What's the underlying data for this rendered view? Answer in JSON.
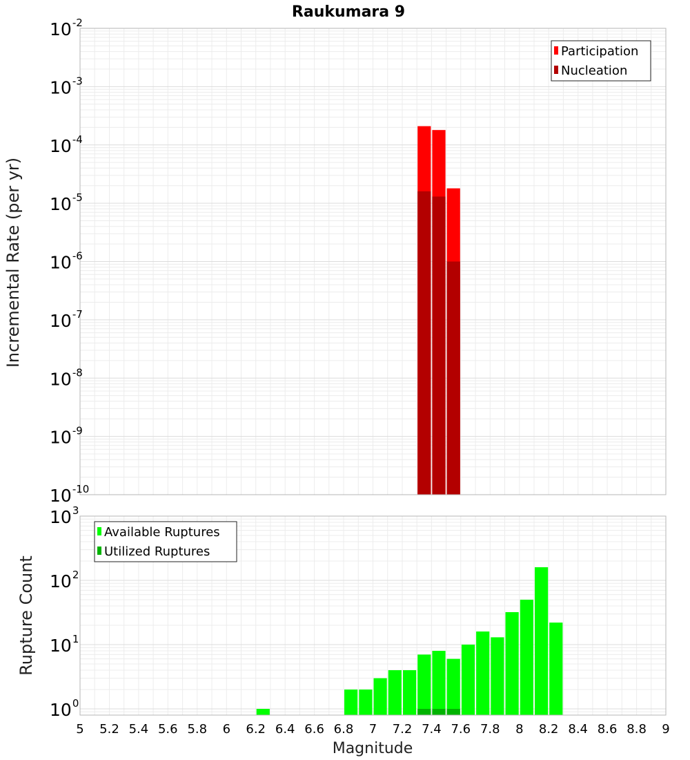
{
  "chart_data": [
    {
      "type": "bar",
      "title": "Raukumara 9",
      "xlabel": "",
      "ylabel": "Incremental Rate (per yr)",
      "yscale": "log",
      "ylim": [
        1e-10,
        0.01
      ],
      "xlim": [
        5,
        9
      ],
      "bin_width": 0.1,
      "grid": true,
      "legend_position": "top-right",
      "y_tick_decades": [
        {
          "base": "10",
          "exp": "-10"
        },
        {
          "base": "10",
          "exp": "-9"
        },
        {
          "base": "10",
          "exp": "-8"
        },
        {
          "base": "10",
          "exp": "-7"
        },
        {
          "base": "10",
          "exp": "-6"
        },
        {
          "base": "10",
          "exp": "-5"
        },
        {
          "base": "10",
          "exp": "-4"
        },
        {
          "base": "10",
          "exp": "-3"
        },
        {
          "base": "10",
          "exp": "-2"
        }
      ],
      "series": [
        {
          "name": "Participation",
          "color": "#ff0000",
          "x": [
            7.35,
            7.45,
            7.55
          ],
          "values": [
            0.00021,
            0.00018,
            1.8e-05
          ]
        },
        {
          "name": "Nucleation",
          "color": "#b30000",
          "x": [
            7.35,
            7.45,
            7.55
          ],
          "values": [
            1.6e-05,
            1.3e-05,
            1e-06
          ]
        }
      ]
    },
    {
      "type": "bar",
      "title": "",
      "xlabel": "Magnitude",
      "ylabel": "Rupture Count",
      "yscale": "log",
      "ylim": [
        0.8,
        1000
      ],
      "xlim": [
        5,
        9
      ],
      "bin_width": 0.1,
      "grid": true,
      "legend_position": "top-left",
      "x_ticks": [
        "5",
        "5.2",
        "5.4",
        "5.6",
        "5.8",
        "6",
        "6.2",
        "6.4",
        "6.6",
        "6.8",
        "7",
        "7.2",
        "7.4",
        "7.6",
        "7.8",
        "8",
        "8.2",
        "8.4",
        "8.6",
        "8.8",
        "9"
      ],
      "y_tick_decades": [
        {
          "base": "10",
          "exp": "0"
        },
        {
          "base": "10",
          "exp": "1"
        },
        {
          "base": "10",
          "exp": "2"
        },
        {
          "base": "10",
          "exp": "3"
        }
      ],
      "series": [
        {
          "name": "Available Ruptures",
          "color": "#00ff00",
          "x": [
            6.25,
            6.85,
            6.95,
            7.05,
            7.15,
            7.25,
            7.35,
            7.45,
            7.55,
            7.65,
            7.75,
            7.85,
            7.95,
            8.05,
            8.15,
            8.25
          ],
          "values": [
            1,
            2,
            2,
            3,
            4,
            4,
            7,
            8,
            6,
            10,
            16,
            13,
            32,
            50,
            160,
            22
          ]
        },
        {
          "name": "Utilized Ruptures",
          "color": "#00b300",
          "x": [
            7.35,
            7.45,
            7.55
          ],
          "values": [
            1,
            1,
            1
          ]
        }
      ]
    }
  ]
}
